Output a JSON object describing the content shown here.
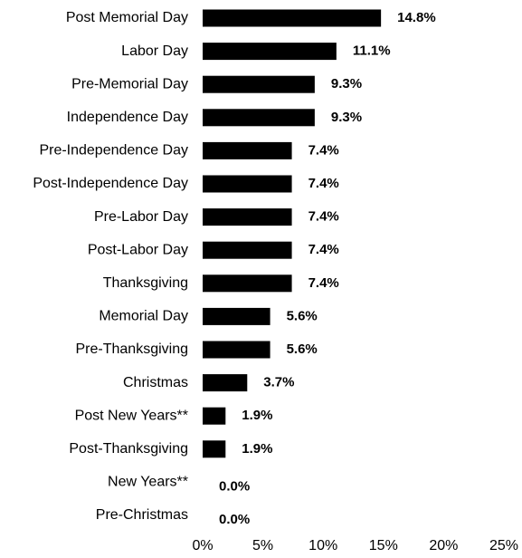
{
  "chart_data": {
    "type": "bar",
    "orientation": "horizontal",
    "categories": [
      "Post Memorial Day",
      "Labor Day",
      "Pre-Memorial Day",
      "Independence Day",
      "Pre-Independence Day",
      "Post-Independence Day",
      "Pre-Labor Day",
      "Post-Labor Day",
      "Thanksgiving",
      "Memorial Day",
      "Pre-Thanksgiving",
      "Christmas",
      "Post New Years**",
      "Post-Thanksgiving",
      "New Years**",
      "Pre-Christmas"
    ],
    "values": [
      14.8,
      11.1,
      9.3,
      9.3,
      7.4,
      7.4,
      7.4,
      7.4,
      7.4,
      5.6,
      5.6,
      3.7,
      1.9,
      1.9,
      0.0,
      0.0
    ],
    "value_labels": [
      "14.8%",
      "11.1%",
      "9.3%",
      "9.3%",
      "7.4%",
      "7.4%",
      "7.4%",
      "7.4%",
      "7.4%",
      "5.6%",
      "5.6%",
      "3.7%",
      "1.9%",
      "1.9%",
      "0.0%",
      "0.0%"
    ],
    "xlim": [
      0,
      25
    ],
    "x_ticks": [
      "0%",
      "5%",
      "10%",
      "15%",
      "20%",
      "25%"
    ],
    "x_tick_values": [
      0,
      5,
      10,
      15,
      20,
      25
    ],
    "grid": false,
    "bar_color": "#000000",
    "title": "",
    "xlabel": "",
    "ylabel": ""
  }
}
